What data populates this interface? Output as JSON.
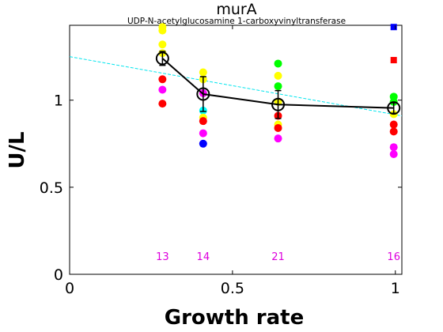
{
  "chart_data": {
    "type": "scatter",
    "title": "murA",
    "subtitle": "UDP-N-acetylglucosamine 1-carboxyvinyltransferase",
    "xlabel": "Growth rate",
    "ylabel": "U/L",
    "xlim": [
      0,
      1.02
    ],
    "ylim": [
      0,
      1.43
    ],
    "xticks": [
      {
        "v": 0,
        "label": "0"
      },
      {
        "v": 0.5,
        "label": "0.5"
      },
      {
        "v": 1,
        "label": "1"
      }
    ],
    "yticks": [
      {
        "v": 0,
        "label": "0"
      },
      {
        "v": 0.5,
        "label": "0.5"
      },
      {
        "v": 1,
        "label": "1"
      }
    ],
    "grid": false,
    "colors": {
      "mean_line": "#000000",
      "fit_line": "#00e5ee",
      "count_labels": "#dd00dd"
    },
    "points": [
      {
        "x": 0.285,
        "y": 1.42,
        "color": "#ffff00",
        "shape": "circle"
      },
      {
        "x": 0.285,
        "y": 1.4,
        "color": "#ffff00",
        "shape": "circle"
      },
      {
        "x": 0.285,
        "y": 1.32,
        "color": "#ffff00",
        "shape": "circle"
      },
      {
        "x": 0.285,
        "y": 1.27,
        "color": "#ffff00",
        "shape": "circle"
      },
      {
        "x": 0.285,
        "y": 1.12,
        "color": "#ff0000",
        "shape": "circle"
      },
      {
        "x": 0.285,
        "y": 1.06,
        "color": "#ff00ff",
        "shape": "circle"
      },
      {
        "x": 0.285,
        "y": 0.98,
        "color": "#ff0000",
        "shape": "circle"
      },
      {
        "x": 0.41,
        "y": 1.16,
        "color": "#ffff00",
        "shape": "circle"
      },
      {
        "x": 0.41,
        "y": 1.12,
        "color": "#ffff00",
        "shape": "circle"
      },
      {
        "x": 0.41,
        "y": 1.04,
        "color": "#ff00ff",
        "shape": "circle"
      },
      {
        "x": 0.41,
        "y": 0.94,
        "color": "#00ffff",
        "shape": "circle"
      },
      {
        "x": 0.41,
        "y": 0.9,
        "color": "#ffff00",
        "shape": "circle"
      },
      {
        "x": 0.41,
        "y": 0.88,
        "color": "#ff0000",
        "shape": "circle"
      },
      {
        "x": 0.41,
        "y": 0.81,
        "color": "#ff00ff",
        "shape": "circle"
      },
      {
        "x": 0.41,
        "y": 0.75,
        "color": "#0000ff",
        "shape": "circle"
      },
      {
        "x": 0.64,
        "y": 1.21,
        "color": "#00ff00",
        "shape": "circle"
      },
      {
        "x": 0.64,
        "y": 1.14,
        "color": "#ffff00",
        "shape": "circle"
      },
      {
        "x": 0.64,
        "y": 1.08,
        "color": "#00ff00",
        "shape": "circle"
      },
      {
        "x": 0.64,
        "y": 0.99,
        "color": "#ffff00",
        "shape": "circle"
      },
      {
        "x": 0.64,
        "y": 0.91,
        "color": "#ff0000",
        "shape": "circle"
      },
      {
        "x": 0.64,
        "y": 0.86,
        "color": "#ffff00",
        "shape": "circle"
      },
      {
        "x": 0.64,
        "y": 0.84,
        "color": "#ff0000",
        "shape": "circle"
      },
      {
        "x": 0.64,
        "y": 0.78,
        "color": "#ff00ff",
        "shape": "circle"
      },
      {
        "x": 0.995,
        "y": 1.42,
        "color": "#0000ff",
        "shape": "square"
      },
      {
        "x": 0.995,
        "y": 1.23,
        "color": "#ff0000",
        "shape": "square"
      },
      {
        "x": 0.995,
        "y": 1.02,
        "color": "#00ff00",
        "shape": "circle"
      },
      {
        "x": 0.995,
        "y": 0.99,
        "color": "#00ff00",
        "shape": "circle"
      },
      {
        "x": 0.995,
        "y": 0.92,
        "color": "#ffff00",
        "shape": "circle"
      },
      {
        "x": 0.995,
        "y": 0.86,
        "color": "#ff0000",
        "shape": "circle"
      },
      {
        "x": 0.995,
        "y": 0.82,
        "color": "#ff0000",
        "shape": "circle"
      },
      {
        "x": 0.995,
        "y": 0.73,
        "color": "#ff00ff",
        "shape": "circle"
      },
      {
        "x": 0.995,
        "y": 0.69,
        "color": "#ff00ff",
        "shape": "circle"
      }
    ],
    "mean_series": [
      {
        "x": 0.285,
        "y": 1.24,
        "err": 0.04
      },
      {
        "x": 0.41,
        "y": 1.035,
        "err": 0.1
      },
      {
        "x": 0.64,
        "y": 0.975,
        "err": 0.08
      },
      {
        "x": 0.995,
        "y": 0.955,
        "err": 0.03
      }
    ],
    "fit_line": {
      "x": [
        0,
        1.02
      ],
      "y": [
        1.25,
        0.91
      ]
    },
    "counts": [
      {
        "x": 0.285,
        "label": "13"
      },
      {
        "x": 0.41,
        "label": "14"
      },
      {
        "x": 0.64,
        "label": "21"
      },
      {
        "x": 0.995,
        "label": "16"
      }
    ]
  }
}
